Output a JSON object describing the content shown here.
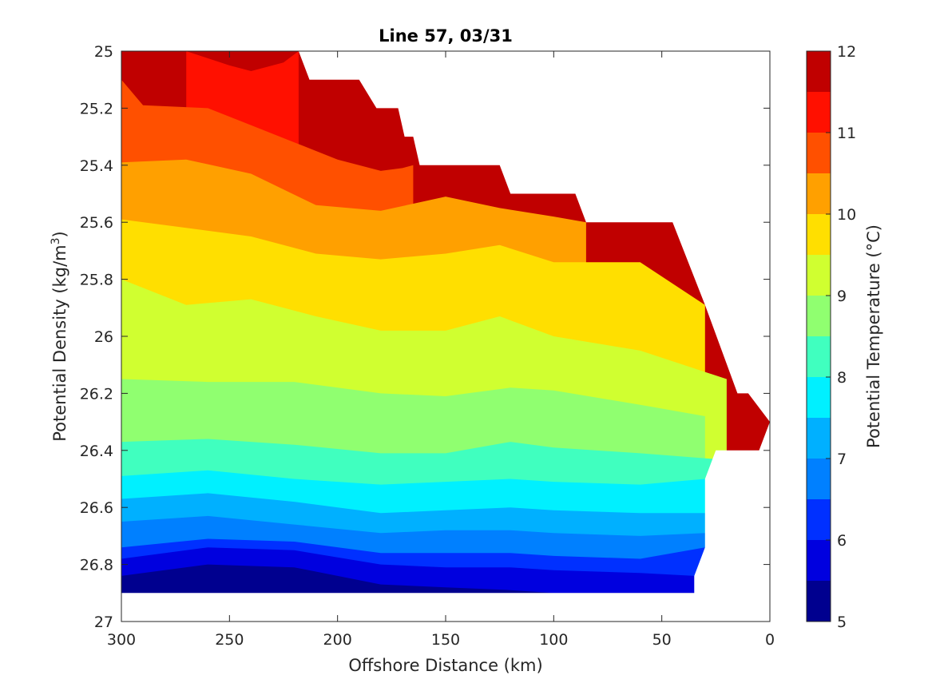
{
  "chart_data": {
    "type": "contourf",
    "title": "Line 57, 03/31",
    "xlabel": "Offshore Distance (km)",
    "ylabel_main": "Potential Density (kg/m",
    "ylabel_sup": "3",
    "ylabel_close": ")",
    "colorbar_label": "Potential Temperature (°C)",
    "xlim": [
      300,
      0
    ],
    "x_reversed": true,
    "ylim": [
      25,
      27
    ],
    "y_reversed": true,
    "grid": false,
    "xticks": [
      300,
      250,
      200,
      150,
      100,
      50,
      0
    ],
    "xtick_labels": [
      "300",
      "250",
      "200",
      "150",
      "100",
      "50",
      "0"
    ],
    "yticks": [
      25,
      25.2,
      25.4,
      25.6,
      25.8,
      26,
      26.2,
      26.4,
      26.6,
      26.8,
      27
    ],
    "ytick_labels": [
      "25",
      "25.2",
      "25.4",
      "25.6",
      "25.8",
      "26",
      "26.2",
      "26.4",
      "26.6",
      "26.8",
      "27"
    ],
    "colorbar_limits": [
      5,
      12
    ],
    "colorbar_ticks": [
      5,
      6,
      7,
      8,
      9,
      10,
      11,
      12
    ],
    "colorbar_tick_labels": [
      "5",
      "6",
      "7",
      "8",
      "9",
      "10",
      "11",
      "12"
    ],
    "levels": [
      5,
      5.5,
      6,
      6.5,
      7,
      7.5,
      8,
      8.5,
      9,
      9.5,
      10,
      10.5,
      11,
      11.5,
      12
    ],
    "level_colors": [
      "#00008f",
      "#0000df",
      "#0030ff",
      "#0080ff",
      "#00b0ff",
      "#00f0ff",
      "#40ffbf",
      "#90ff70",
      "#d0ff30",
      "#ffdf00",
      "#ffa000",
      "#ff5000",
      "#ff1000",
      "#c00000"
    ],
    "data_domain": {
      "top_edge": [
        [
          300,
          25.0
        ],
        [
          218,
          25.0
        ],
        [
          213,
          25.1
        ],
        [
          190,
          25.1
        ],
        [
          182,
          25.2
        ],
        [
          172,
          25.2
        ],
        [
          169,
          25.3
        ],
        [
          165,
          25.3
        ],
        [
          162,
          25.4
        ],
        [
          125,
          25.4
        ],
        [
          120,
          25.5
        ],
        [
          90,
          25.5
        ],
        [
          85,
          25.6
        ],
        [
          45,
          25.6
        ],
        [
          30,
          25.89
        ],
        [
          15,
          26.2
        ],
        [
          10,
          26.2
        ],
        [
          0,
          26.3
        ]
      ],
      "bottom_edge": [
        [
          300,
          26.9
        ],
        [
          35,
          26.9
        ],
        [
          35,
          26.84
        ],
        [
          30,
          26.74
        ],
        [
          30,
          26.5
        ],
        [
          25,
          26.4
        ],
        [
          5,
          26.4
        ],
        [
          0,
          26.3
        ]
      ]
    },
    "isotherms": [
      {
        "t": 5.5,
        "points": [
          [
            300,
            26.84
          ],
          [
            260,
            26.8
          ],
          [
            220,
            26.81
          ],
          [
            180,
            26.87
          ],
          [
            150,
            26.88
          ],
          [
            120,
            26.89
          ],
          [
            100,
            26.9
          ],
          [
            60,
            26.9
          ],
          [
            35,
            26.9
          ]
        ]
      },
      {
        "t": 6.0,
        "points": [
          [
            300,
            26.78
          ],
          [
            260,
            26.74
          ],
          [
            220,
            26.75
          ],
          [
            180,
            26.8
          ],
          [
            150,
            26.81
          ],
          [
            120,
            26.81
          ],
          [
            100,
            26.82
          ],
          [
            60,
            26.83
          ],
          [
            35,
            26.84
          ]
        ]
      },
      {
        "t": 6.5,
        "points": [
          [
            300,
            26.74
          ],
          [
            260,
            26.71
          ],
          [
            220,
            26.72
          ],
          [
            180,
            26.76
          ],
          [
            150,
            26.76
          ],
          [
            120,
            26.76
          ],
          [
            100,
            26.77
          ],
          [
            60,
            26.78
          ],
          [
            30,
            26.74
          ]
        ]
      },
      {
        "t": 7.0,
        "points": [
          [
            300,
            26.65
          ],
          [
            260,
            26.63
          ],
          [
            220,
            26.66
          ],
          [
            180,
            26.69
          ],
          [
            150,
            26.68
          ],
          [
            120,
            26.68
          ],
          [
            100,
            26.69
          ],
          [
            60,
            26.7
          ],
          [
            30,
            26.69
          ]
        ]
      },
      {
        "t": 7.5,
        "points": [
          [
            300,
            26.57
          ],
          [
            260,
            26.55
          ],
          [
            220,
            26.58
          ],
          [
            180,
            26.62
          ],
          [
            150,
            26.61
          ],
          [
            120,
            26.6
          ],
          [
            100,
            26.61
          ],
          [
            60,
            26.62
          ],
          [
            30,
            26.62
          ]
        ]
      },
      {
        "t": 8.0,
        "points": [
          [
            300,
            26.49
          ],
          [
            260,
            26.47
          ],
          [
            220,
            26.5
          ],
          [
            180,
            26.52
          ],
          [
            150,
            26.51
          ],
          [
            120,
            26.5
          ],
          [
            100,
            26.51
          ],
          [
            60,
            26.52
          ],
          [
            30,
            26.5
          ]
        ]
      },
      {
        "t": 8.5,
        "points": [
          [
            300,
            26.37
          ],
          [
            260,
            26.36
          ],
          [
            220,
            26.38
          ],
          [
            180,
            26.41
          ],
          [
            150,
            26.41
          ],
          [
            120,
            26.37
          ],
          [
            100,
            26.39
          ],
          [
            60,
            26.41
          ],
          [
            26,
            26.43
          ]
        ]
      },
      {
        "t": 9.0,
        "points": [
          [
            300,
            26.15
          ],
          [
            260,
            26.16
          ],
          [
            220,
            26.16
          ],
          [
            180,
            26.2
          ],
          [
            150,
            26.21
          ],
          [
            120,
            26.18
          ],
          [
            100,
            26.19
          ],
          [
            60,
            26.24
          ],
          [
            30,
            26.28
          ]
        ]
      },
      {
        "t": 9.5,
        "points": [
          [
            300,
            25.8
          ],
          [
            270,
            25.89
          ],
          [
            240,
            25.87
          ],
          [
            210,
            25.93
          ],
          [
            180,
            25.98
          ],
          [
            150,
            25.98
          ],
          [
            125,
            25.93
          ],
          [
            100,
            26.0
          ],
          [
            60,
            26.05
          ],
          [
            20,
            26.15
          ]
        ]
      },
      {
        "t": 10.0,
        "points": [
          [
            300,
            25.59
          ],
          [
            270,
            25.62
          ],
          [
            240,
            25.65
          ],
          [
            210,
            25.71
          ],
          [
            180,
            25.73
          ],
          [
            150,
            25.71
          ],
          [
            125,
            25.68
          ],
          [
            100,
            25.74
          ],
          [
            60,
            25.74
          ],
          [
            30,
            25.89
          ]
        ]
      },
      {
        "t": 10.5,
        "points": [
          [
            300,
            25.39
          ],
          [
            270,
            25.38
          ],
          [
            240,
            25.43
          ],
          [
            210,
            25.54
          ],
          [
            180,
            25.56
          ],
          [
            150,
            25.51
          ],
          [
            125,
            25.55
          ],
          [
            100,
            25.58
          ],
          [
            85,
            25.6
          ]
        ]
      },
      {
        "t": 11.0,
        "points": [
          [
            300,
            25.1
          ],
          [
            290,
            25.19
          ],
          [
            260,
            25.2
          ],
          [
            240,
            25.26
          ],
          [
            220,
            25.32
          ],
          [
            200,
            25.38
          ],
          [
            180,
            25.42
          ],
          [
            170,
            25.41
          ],
          [
            165,
            25.4
          ]
        ]
      },
      {
        "t": 11.5,
        "points": [
          [
            270,
            25.0
          ],
          [
            250,
            25.05
          ],
          [
            240,
            25.07
          ],
          [
            225,
            25.04
          ],
          [
            218,
            25.0
          ]
        ]
      }
    ]
  }
}
